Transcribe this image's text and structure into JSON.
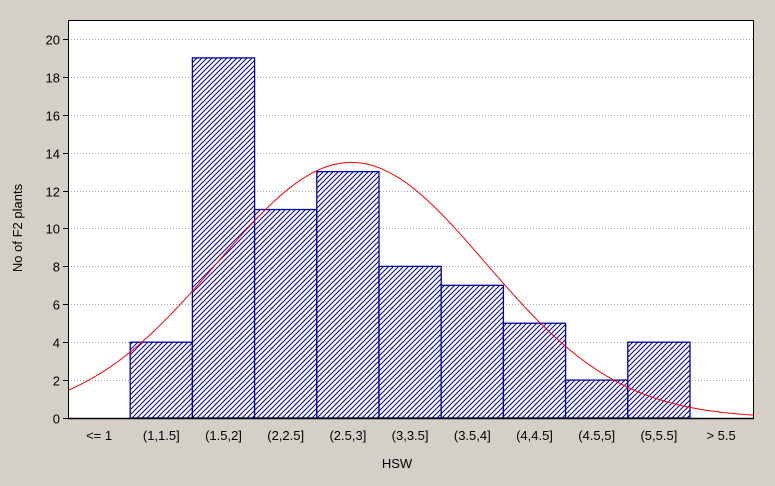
{
  "chart_data": {
    "type": "bar",
    "title": "",
    "xlabel": "HSW",
    "ylabel": "No of F2 plants",
    "categories": [
      "<= 1",
      "(1,1.5]",
      "(1.5,2]",
      "(2,2.5]",
      "(2.5,3]",
      "(3,3.5]",
      "(3.5,4]",
      "(4,4.5]",
      "(4.5,5]",
      "(5,5.5]",
      "> 5.5"
    ],
    "values": [
      0,
      4,
      19,
      11,
      13,
      8,
      7,
      5,
      2,
      4,
      0
    ],
    "ylim": [
      0,
      21
    ],
    "yticks": [
      0,
      2,
      4,
      6,
      8,
      10,
      12,
      14,
      16,
      18,
      20
    ],
    "grid": true,
    "bar_color": "#0000a0",
    "bar_fill": "diagonal-hatch",
    "fit_curve": {
      "type": "normal",
      "color": "#ff0000"
    }
  }
}
